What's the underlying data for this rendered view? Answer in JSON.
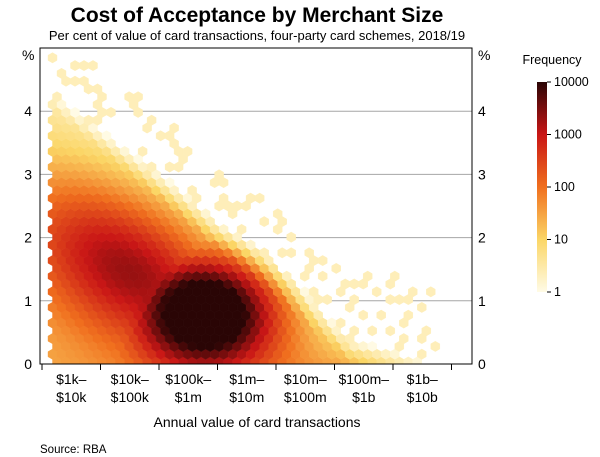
{
  "chart_data": {
    "type": "heatmap",
    "title": "Cost of Acceptance by Merchant Size",
    "subtitle": "Per cent of value of card transactions, four-party card schemes, 2018/19",
    "ylabel_left": "%",
    "ylabel_right": "%",
    "xlabel": "Annual value of card transactions",
    "ylim": [
      0,
      5
    ],
    "yticks": [
      "0",
      "1",
      "2",
      "3",
      "4"
    ],
    "xticks": [
      {
        "line1": "$1k–",
        "line2": "$10k"
      },
      {
        "line1": "$10k–",
        "line2": "$100k"
      },
      {
        "line1": "$100k–",
        "line2": "$1m"
      },
      {
        "line1": "$1m–",
        "line2": "$10m"
      },
      {
        "line1": "$10m–",
        "line2": "$100m"
      },
      {
        "line1": "$100m–",
        "line2": "$1b"
      },
      {
        "line1": "$1b–",
        "line2": "$10b"
      }
    ],
    "x_scale": "log",
    "x_range_dollars": [
      "$1k",
      "$10b"
    ],
    "grid": true,
    "density_peak": {
      "x_band": "$100k–$1m",
      "y_percent": 0.8,
      "frequency": 10000
    },
    "colorbar": {
      "title": "Frequency",
      "scale": "log",
      "ticks": [
        "10000",
        "1000",
        "100",
        "10",
        "1"
      ],
      "colors": [
        "#2a0505",
        "#c91616",
        "#f06f1e",
        "#fbd666",
        "#fffbe6"
      ]
    }
  },
  "footer": {
    "source": "Source:   RBA"
  }
}
